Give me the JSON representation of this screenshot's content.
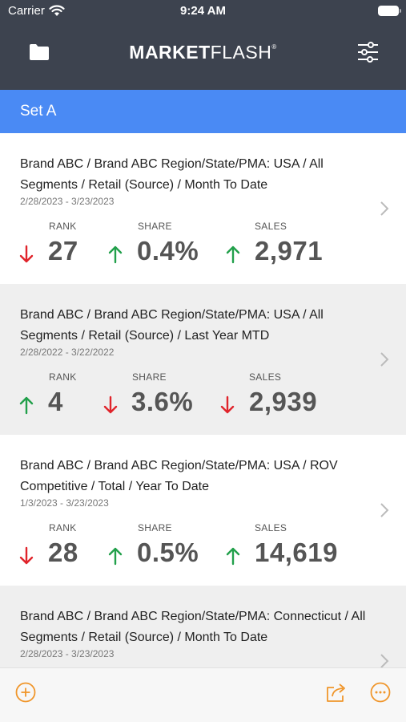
{
  "status_bar": {
    "carrier": "Carrier",
    "time": "9:24 AM"
  },
  "nav": {
    "logo_bold": "MARKET",
    "logo_light": "FLASH",
    "logo_mark": "®"
  },
  "set": {
    "title": "Set A"
  },
  "colors": {
    "header_bg": "#3d434f",
    "set_bg": "#4a8af4",
    "up": "#22a04b",
    "down": "#e0242b",
    "toolbar_accent": "#f0962b"
  },
  "metric_labels": {
    "rank": "RANK",
    "share": "SHARE",
    "sales": "SALES"
  },
  "cards": [
    {
      "title": "Brand ABC / Brand ABC  Region/State/PMA: USA / All Segments / Retail (Source) / Month To Date",
      "date": "2/28/2023 - 3/23/2023",
      "rank": {
        "value": "27",
        "direction": "down"
      },
      "share": {
        "value": "0.4%",
        "direction": "up"
      },
      "sales": {
        "value": "2,971",
        "direction": "up"
      }
    },
    {
      "title": "Brand ABC / Brand ABC  Region/State/PMA: USA / All Segments / Retail (Source) / Last Year MTD",
      "date": "2/28/2022 - 3/22/2022",
      "rank": {
        "value": "4",
        "direction": "up"
      },
      "share": {
        "value": "3.6%",
        "direction": "down"
      },
      "sales": {
        "value": "2,939",
        "direction": "down"
      }
    },
    {
      "title": "Brand ABC / Brand ABC  Region/State/PMA: USA / ROV Competitive / Total / Year To Date",
      "date": "1/3/2023 - 3/23/2023",
      "rank": {
        "value": "28",
        "direction": "down"
      },
      "share": {
        "value": "0.5%",
        "direction": "up"
      },
      "sales": {
        "value": "14,619",
        "direction": "up"
      }
    },
    {
      "title": "Brand ABC / Brand ABC Region/State/PMA: Connecticut / All Segments / Retail (Source) / Month To Date",
      "date": "2/28/2023 - 3/23/2023"
    }
  ],
  "toolbar": {
    "icons": [
      "add-circle-icon",
      "share-icon",
      "more-icon"
    ]
  }
}
